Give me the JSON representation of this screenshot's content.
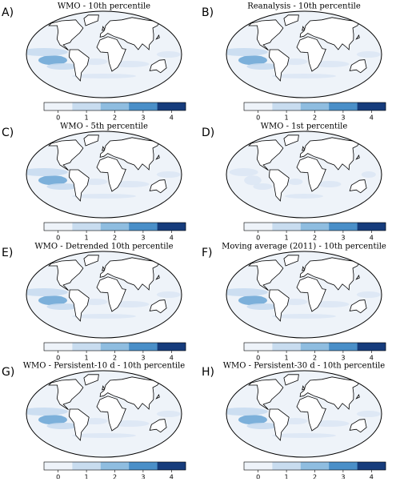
{
  "panels": [
    {
      "label": "A)",
      "title": "WMO - 10th percentile"
    },
    {
      "label": "B)",
      "title": "Reanalysis - 10th percentile"
    },
    {
      "label": "C)",
      "title": "WMO - 5th percentile"
    },
    {
      "label": "D)",
      "title": "WMO - 1st percentile"
    },
    {
      "label": "E)",
      "title": "WMO - Detrended 10th percentile"
    },
    {
      "label": "F)",
      "title": "Moving average (2011) - 10th percentile"
    },
    {
      "label": "G)",
      "title": "WMO - Persistent-10 d - 10th percentile"
    },
    {
      "label": "H)",
      "title": "WMO - Persistent-30 d - 10th percentile"
    }
  ],
  "colorbar": {
    "colors": [
      "#eef3f9",
      "#c8dcef",
      "#8fbde0",
      "#4a8fc8",
      "#163c7c"
    ],
    "lim": [
      -0.5,
      4.5
    ],
    "ticks": [
      0,
      1,
      2,
      3,
      4
    ]
  }
}
